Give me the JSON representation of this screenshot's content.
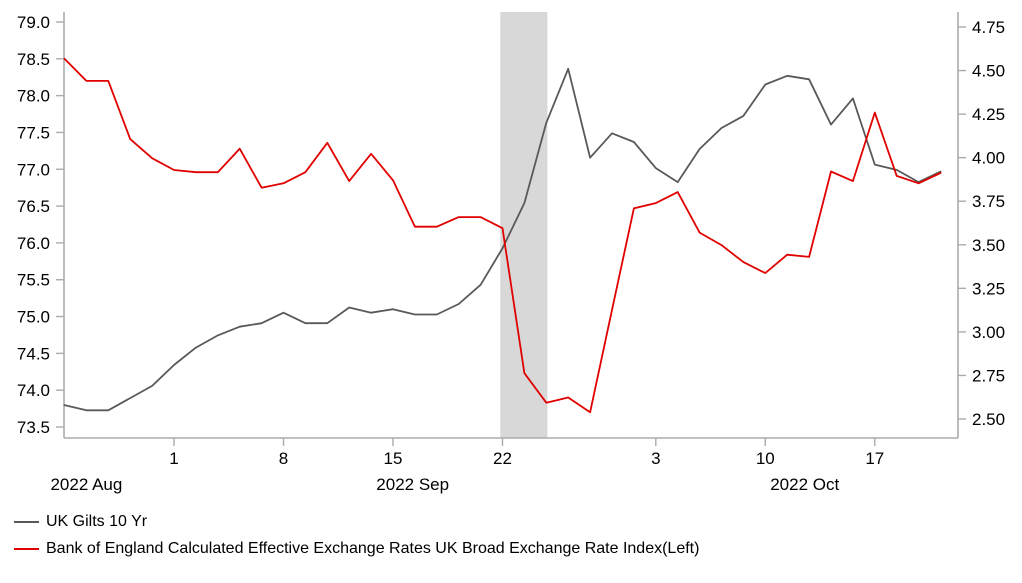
{
  "chart_data": {
    "type": "line",
    "title": "",
    "x": [
      "Aug 25",
      "Aug 26",
      "Aug 29",
      "Aug 30",
      "Aug 31",
      "Sep 1",
      "Sep 2",
      "Sep 5",
      "Sep 6",
      "Sep 7",
      "Sep 8",
      "Sep 9",
      "Sep 12",
      "Sep 13",
      "Sep 14",
      "Sep 15",
      "Sep 16",
      "Sep 19",
      "Sep 20",
      "Sep 21",
      "Sep 22",
      "Sep 23",
      "Sep 26",
      "Sep 27",
      "Sep 28",
      "Sep 29",
      "Sep 30",
      "Oct 3",
      "Oct 4",
      "Oct 5",
      "Oct 6",
      "Oct 7",
      "Oct 10",
      "Oct 11",
      "Oct 12",
      "Oct 13",
      "Oct 14",
      "Oct 17",
      "Oct 18",
      "Oct 19",
      "Oct 20"
    ],
    "series": [
      {
        "name": "UK Gilts 10 Yr",
        "axis": "right",
        "color": "#595959",
        "values": [
          2.58,
          2.55,
          2.55,
          2.62,
          2.69,
          2.81,
          2.91,
          2.98,
          3.03,
          3.05,
          3.11,
          3.05,
          3.05,
          3.14,
          3.11,
          3.13,
          3.1,
          3.1,
          3.16,
          3.27,
          3.48,
          3.74,
          4.2,
          4.51,
          4.0,
          4.14,
          4.09,
          3.94,
          3.86,
          4.05,
          4.17,
          4.24,
          4.42,
          4.47,
          4.45,
          4.19,
          4.34,
          3.96,
          3.93,
          3.86,
          3.92
        ]
      },
      {
        "name": "Bank of England Calculated Effective Exchange Rates UK Broad Exchange Rate Index(Left)",
        "axis": "left",
        "color": "#e10000",
        "values": [
          78.5,
          78.2,
          78.2,
          77.41,
          77.15,
          76.99,
          76.96,
          76.96,
          77.28,
          76.75,
          76.81,
          76.96,
          77.36,
          76.84,
          77.21,
          76.85,
          76.22,
          76.22,
          76.35,
          76.35,
          76.2,
          74.23,
          73.83,
          73.9,
          73.7,
          75.09,
          76.47,
          76.54,
          76.69,
          76.14,
          75.97,
          75.74,
          75.59,
          75.84,
          75.81,
          76.97,
          76.84,
          77.77,
          76.91,
          76.81,
          76.95
        ]
      }
    ],
    "left_axis": {
      "min": 73.5,
      "max": 79.0,
      "step": 0.5,
      "tick_labels": [
        "79.0",
        "78.5",
        "78.0",
        "77.5",
        "77.0",
        "76.5",
        "76.0",
        "75.5",
        "75.0",
        "74.5",
        "74.0",
        "73.5"
      ]
    },
    "right_axis": {
      "min": 2.5,
      "max": 4.75,
      "step": 0.25,
      "tick_labels": [
        "4.75",
        "4.50",
        "4.25",
        "4.00",
        "3.75",
        "3.50",
        "3.25",
        "3.00",
        "2.75",
        "2.50"
      ]
    },
    "x_ticks": [
      {
        "index": 5,
        "label": "1"
      },
      {
        "index": 10,
        "label": "8"
      },
      {
        "index": 15,
        "label": "15"
      },
      {
        "index": 20,
        "label": "22"
      },
      {
        "index": 27,
        "label": "3"
      },
      {
        "index": 32,
        "label": "10"
      },
      {
        "index": 37,
        "label": "17"
      }
    ],
    "month_labels": [
      {
        "label": "2022 Aug",
        "index_center": 1.0
      },
      {
        "label": "2022 Sep",
        "index_center": 15.9
      },
      {
        "label": "2022 Oct",
        "index_center": 33.8
      }
    ],
    "highlight_band": {
      "from": "Sep 22",
      "to": "Sep 26",
      "start_index": 19.9,
      "end_index": 22.05,
      "color": "#d8d8d8"
    },
    "grid": "off",
    "legend_position": "bottom-left"
  },
  "legend": {
    "items": [
      {
        "label": "UK Gilts 10 Yr",
        "color": "#595959"
      },
      {
        "label": "Bank of England Calculated Effective Exchange Rates UK Broad Exchange Rate Index(Left)",
        "color": "#e10000"
      }
    ]
  },
  "colors": {
    "axis_line": "#ababab",
    "tick_text": "#000000",
    "background": "#ffffff"
  }
}
